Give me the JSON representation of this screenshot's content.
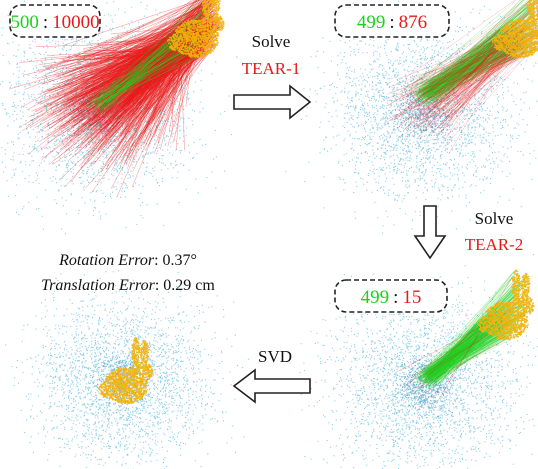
{
  "panels": [
    {
      "id": "initial",
      "inliers": "500",
      "separator": ":",
      "total": "10000"
    },
    {
      "id": "after-tear-1",
      "inliers": "499",
      "separator": ":",
      "total": "876"
    },
    {
      "id": "after-tear-2",
      "inliers": "499",
      "separator": ":",
      "total": "15"
    }
  ],
  "steps": {
    "step1": {
      "verb": "Solve",
      "method": "TEAR-1"
    },
    "step2": {
      "verb": "Solve",
      "method": "TEAR-2"
    },
    "step3": {
      "method": "SVD"
    }
  },
  "result": {
    "rotation_label": "Rotation Error",
    "rotation_value": ": 0.37°",
    "translation_label": "Translation Error",
    "translation_value": ": 0.29 cm"
  },
  "colors": {
    "inlier": "#1fd11f",
    "outlier": "#e81919",
    "bunny": "#f2b20c",
    "cloud": "#2fa8d8",
    "arrow_stroke": "#222222"
  }
}
